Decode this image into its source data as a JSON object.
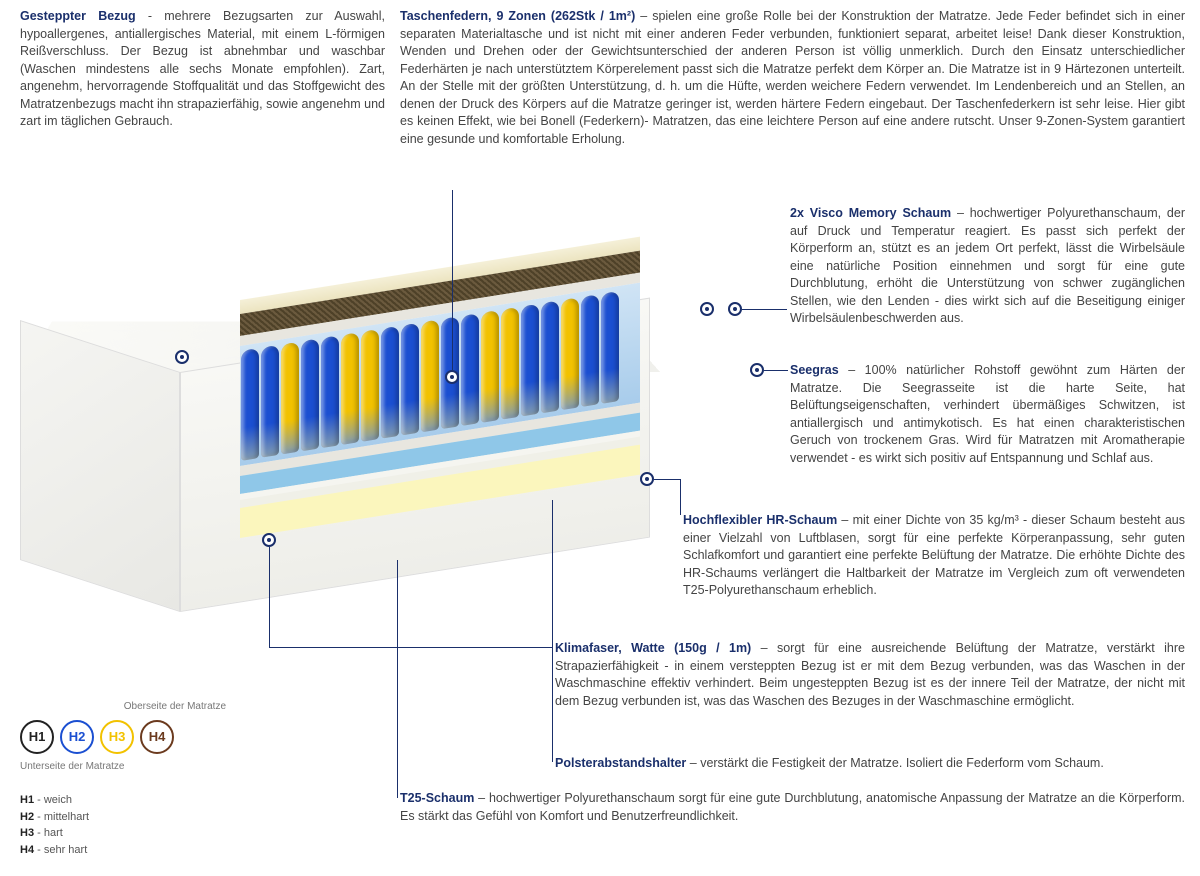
{
  "blocks": {
    "bezug": {
      "title": "Gesteppter Bezug",
      "text": " - mehrere Bezugsarten zur Auswahl, hypoallergenes, antiallergisches Material, mit einem L-förmigen Reißverschluss. Der Bezug ist abnehmbar und waschbar (Waschen mindestens alle sechs Monate empfohlen). Zart, angenehm, hervorragende Stoffqualität und das Stoffgewicht des Matratzenbezugs macht ihn strapazierfähig, sowie angenehm und zart im täglichen Gebrauch."
    },
    "federn": {
      "title": "Taschenfedern, 9 Zonen (262Stk / 1m²)",
      "text": " – spielen eine große Rolle bei der Konstruktion der Matratze. Jede Feder befindet sich in einer separaten Materialtasche und ist nicht mit einer anderen Feder verbunden, funktioniert separat, arbeitet leise! Dank dieser Konstruktion, Wenden und Drehen oder der Gewichtsunterschied der anderen Person ist völlig unmerklich. Durch den Einsatz unterschiedlicher Federhärten je nach unterstütztem Körperelement passt sich die Matratze perfekt dem Körper an. Die Matratze ist in 9 Härtezonen unterteilt. An der Stelle mit der größten Unterstützung, d. h. um die Hüfte, werden weichere Federn verwendet. Im Lendenbereich und an Stellen, an denen der Druck des Körpers auf die Matratze geringer ist, werden härtere Federn eingebaut. Der Taschenfederkern ist sehr leise. Hier gibt es keinen Effekt, wie bei Bonell (Federkern)- Matratzen, das eine leichtere Person auf eine andere rutscht. Unser 9-Zonen-System garantiert eine gesunde und komfortable Erholung."
    },
    "visco": {
      "title": "2x Visco Memory Schaum",
      "text": " – hochwertiger Polyurethanschaum, der auf Druck und Temperatur reagiert. Es passt sich perfekt der Körperform an, stützt es an jedem Ort perfekt, lässt die Wirbelsäule eine natürliche Position einnehmen und sorgt für eine gute Durchblutung, erhöht die Unterstützung von schwer zugänglichen Stellen, wie den Lenden - dies wirkt sich auf die Beseitigung einiger Wirbelsäulenbeschwerden aus."
    },
    "seegras": {
      "title": "Seegras",
      "text": " – 100% natürlicher Rohstoff gewöhnt zum Härten der Matratze. Die Seegrasseite ist die harte Seite, hat Belüftungseigenschaften, verhindert übermäßiges Schwitzen, ist antiallergisch und antimykotisch. Es hat einen charakteristischen Geruch von trockenem Gras. Wird für Matratzen mit Aromatherapie verwendet - es wirkt sich positiv auf Entspannung und Schlaf aus."
    },
    "hr": {
      "title": "Hochflexibler HR-Schaum",
      "text": " – mit einer Dichte von 35 kg/m³ - dieser Schaum besteht aus einer Vielzahl von Luftblasen, sorgt für eine perfekte Körperanpassung, sehr guten Schlafkomfort und garantiert eine perfekte Belüftung der Matratze. Die erhöhte Dichte des HR-Schaums verlängert die Haltbarkeit der Matratze im Vergleich zum oft verwendeten T25-Polyurethanschaum erheblich."
    },
    "klima": {
      "title": "Klimafaser, Watte (150g / 1m)",
      "text": " – sorgt für eine ausreichende Belüftung der Matratze, verstärkt ihre Strapazierfähigkeit - in einem versteppten Bezug ist er mit dem Bezug verbunden, was das Waschen in der Waschmaschine effektiv verhindert. Beim ungesteppten Bezug ist es der innere Teil der Matratze, der nicht mit dem Bezug verbunden ist, was das Waschen des Bezuges in der Waschmaschine ermöglicht."
    },
    "polster": {
      "title": "Polsterabstandshalter",
      "text": " – verstärkt die Festigkeit der Matratze. Isoliert die Federform vom Schaum."
    },
    "t25": {
      "title": "T25-Schaum",
      "text": " – hochwertiger Polyurethanschaum sorgt für eine gute Durchblutung, anatomische Anpassung der Matratze an die Körperform. Es stärkt das Gefühl von Komfort und Benutzerfreundlichkeit."
    }
  },
  "hlegend": {
    "top_label": "Oberseite der Matratze",
    "bottom_label": "Unterseite der Matratze",
    "items": [
      {
        "code": "H1",
        "color": "#222222",
        "def": "weich"
      },
      {
        "code": "H2",
        "color": "#1b4fd1",
        "def": "mittelhart"
      },
      {
        "code": "H3",
        "color": "#f2c200",
        "def": "hart"
      },
      {
        "code": "H4",
        "color": "#6b3a1e",
        "def": "sehr hart"
      }
    ]
  },
  "springs": {
    "pattern": [
      "#1b4fd1",
      "#1b4fd1",
      "#f2c200",
      "#1b4fd1",
      "#1b4fd1",
      "#f2c200",
      "#f2c200",
      "#1b4fd1",
      "#1b4fd1",
      "#f2c200",
      "#1b4fd1",
      "#1b4fd1",
      "#f2c200",
      "#f2c200",
      "#1b4fd1",
      "#1b4fd1",
      "#f2c200",
      "#1b4fd1",
      "#1b4fd1"
    ]
  },
  "colors": {
    "title": "#1a2f6b",
    "seagrass": "#5a4a30",
    "hr_foam": "#8FC7E8",
    "t25_foam": "#FBF6BD"
  }
}
